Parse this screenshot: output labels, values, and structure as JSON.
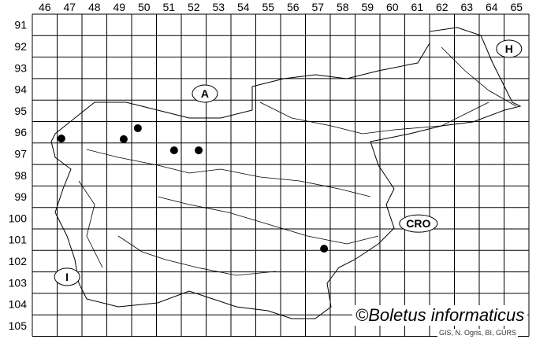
{
  "chart_data": {
    "type": "scatter",
    "x_ticks": [
      46,
      47,
      48,
      49,
      50,
      51,
      52,
      53,
      54,
      55,
      56,
      57,
      58,
      59,
      60,
      61,
      62,
      63,
      64,
      65
    ],
    "y_ticks": [
      91,
      92,
      93,
      94,
      95,
      96,
      97,
      98,
      99,
      100,
      101,
      102,
      103,
      104,
      105
    ],
    "xlim": [
      46,
      65
    ],
    "ylim": [
      91,
      105
    ],
    "y_inverted": true,
    "grid": true,
    "points": [
      {
        "x": 46.67,
        "y": 96.29
      },
      {
        "x": 49.18,
        "y": 96.32
      },
      {
        "x": 49.75,
        "y": 95.81
      },
      {
        "x": 51.21,
        "y": 96.84
      },
      {
        "x": 52.2,
        "y": 96.84
      },
      {
        "x": 57.25,
        "y": 101.42
      }
    ],
    "country_labels": [
      {
        "text": "A",
        "x": 52.45,
        "y": 94.2
      },
      {
        "text": "H",
        "x": 64.7,
        "y": 92.11
      },
      {
        "text": "CRO",
        "x": 61.05,
        "y": 100.25
      },
      {
        "text": "I",
        "x": 46.9,
        "y": 102.73
      }
    ],
    "point_color": "#000000"
  },
  "copyright": "©Boletus informaticus",
  "credits": "GIS, N. Ogris, BI, GURS"
}
